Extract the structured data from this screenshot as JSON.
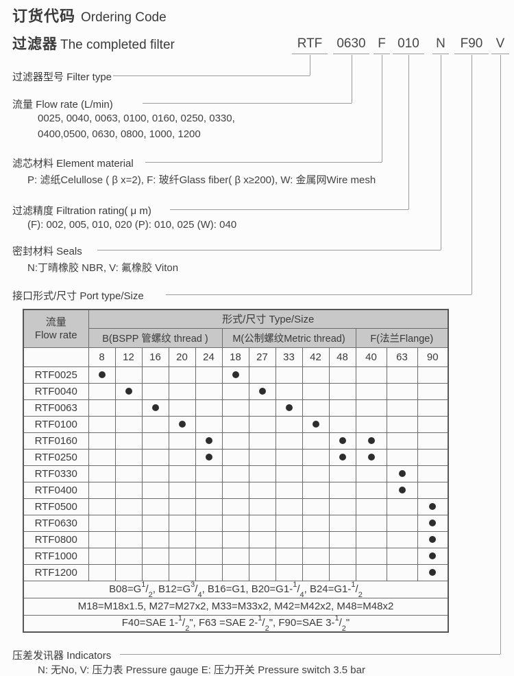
{
  "page": {
    "title_zh": "订货代码",
    "title_en": "Ordering Code",
    "subtitle_zh": "过滤器",
    "subtitle_en": "The completed filter"
  },
  "code": {
    "segments": [
      {
        "name": "filter-type",
        "text": "RTF"
      },
      {
        "name": "flow-rate",
        "text": "0630"
      },
      {
        "name": "element-material",
        "text": "F"
      },
      {
        "name": "filtration-rating",
        "text": "010"
      },
      {
        "name": "seals",
        "text": "N"
      },
      {
        "name": "port-size",
        "text": "F90"
      },
      {
        "name": "indicator",
        "text": "V"
      }
    ]
  },
  "sections": {
    "filter_type": {
      "label": "过滤器型号 Filter type"
    },
    "flow_rate": {
      "label": "流量 Flow rate (L/min)",
      "line1": "0025, 0040, 0063, 0100, 0160, 0250, 0330,",
      "line2": "0400,0500, 0630, 0800, 1000, 1200"
    },
    "element_material": {
      "label": "滤芯材料 Element material",
      "detail": "P: 滤纸Celullose ( β x=2),  F: 玻纤Glass fiber( β x≥200), W: 金属网Wire mesh"
    },
    "filtration_rating": {
      "label": "过滤精度 Filtration rating( μ m)",
      "detail": "(F): 002, 005, 010, 020 (P): 010, 025 (W): 040"
    },
    "seals": {
      "label": "密封材料 Seals",
      "detail": "N:丁晴橡胶 NBR,   V: 氟橡胶 Viton"
    },
    "port": {
      "label": "接口形式/尺寸 Port type/Size"
    },
    "indicators": {
      "label": "压差发讯器 Indicators",
      "detail": "N: 无No, V: 压力表 Pressure gauge  E: 压力开关 Pressure switch 3.5 bar"
    }
  },
  "table": {
    "flow_header_zh": "流量",
    "flow_header_en": "Flow rate",
    "type_size_header": "形式/尺寸 Type/Size",
    "groups": [
      {
        "label": "B(BSPP 管螺纹 thread )",
        "span": 5
      },
      {
        "label": "M(公制螺纹Metric thread)",
        "span": 5
      },
      {
        "label": "F(法兰Flange)",
        "span": 3
      }
    ],
    "columns": [
      {
        "id": "B8",
        "size": "8",
        "group": "B"
      },
      {
        "id": "B12",
        "size": "12",
        "group": "B"
      },
      {
        "id": "B16",
        "size": "16",
        "group": "B"
      },
      {
        "id": "B20",
        "size": "20",
        "group": "B"
      },
      {
        "id": "B24",
        "size": "24",
        "group": "B"
      },
      {
        "id": "M18",
        "size": "18",
        "group": "M"
      },
      {
        "id": "M27",
        "size": "27",
        "group": "M"
      },
      {
        "id": "M33",
        "size": "33",
        "group": "M"
      },
      {
        "id": "M42",
        "size": "42",
        "group": "M"
      },
      {
        "id": "M48",
        "size": "48",
        "group": "M"
      },
      {
        "id": "F40",
        "size": "40",
        "group": "F"
      },
      {
        "id": "F63",
        "size": "63",
        "group": "F"
      },
      {
        "id": "F90",
        "size": "90",
        "group": "F"
      }
    ],
    "rows": [
      {
        "model": "RTF0025",
        "dots": [
          "B8",
          "M18"
        ]
      },
      {
        "model": "RTF0040",
        "dots": [
          "B12",
          "M27"
        ]
      },
      {
        "model": "RTF0063",
        "dots": [
          "B16",
          "M33"
        ]
      },
      {
        "model": "RTF0100",
        "dots": [
          "B20",
          "M42"
        ]
      },
      {
        "model": "RTF0160",
        "dots": [
          "B24",
          "M48",
          "F40"
        ]
      },
      {
        "model": "RTF0250",
        "dots": [
          "B24",
          "M48",
          "F40"
        ]
      },
      {
        "model": "RTF0330",
        "dots": [
          "F63"
        ]
      },
      {
        "model": "RTF0400",
        "dots": [
          "F63"
        ]
      },
      {
        "model": "RTF0500",
        "dots": [
          "F90"
        ]
      },
      {
        "model": "RTF0630",
        "dots": [
          "F90"
        ]
      },
      {
        "model": "RTF0800",
        "dots": [
          "F90"
        ]
      },
      {
        "model": "RTF1000",
        "dots": [
          "F90"
        ]
      },
      {
        "model": "RTF1200",
        "dots": [
          "F90"
        ]
      }
    ],
    "footnotes": [
      "B08=G1/2,  B12=G3/4, B16=G1, B20=G1-1/4, B24=G1-1/2",
      "M18=M18x1.5, M27=M27x2, M33=M33x2, M42=M42x2, M48=M48x2",
      "F40=SAE 1-1/2\",  F63 =SAE 2-1/2\",  F90=SAE 3-1/2\""
    ]
  },
  "colors": {
    "paper": "#fcfcfc",
    "header": "#c8c8c8",
    "border": "#6b6b6b",
    "line": "#9a9a9a",
    "dot": "#2d2d2d",
    "text": "#3a3a3a"
  }
}
